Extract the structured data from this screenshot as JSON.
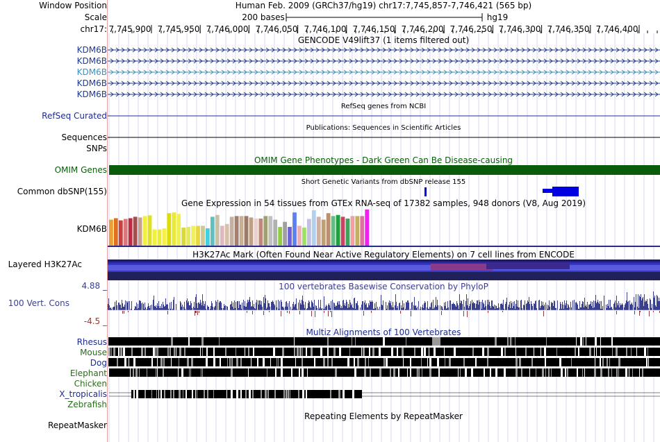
{
  "header": {
    "window_label": "Window Position",
    "window_text": "Human Feb. 2009 (GRCh37/hg19)   chr17:7,745,857-7,746,421 (565 bp)",
    "scale_label": "Scale",
    "scale_text": "200 bases",
    "scale_assembly": "hg19",
    "chrom_label": "chr17:",
    "ruler_ticks": [
      "7,745,900",
      "7,745,950",
      "7,746,000",
      "7,746,050",
      "7,746,100",
      "7,746,150",
      "7,746,200",
      "7,746,250",
      "7,746,300",
      "7,746,350",
      "7,746,400"
    ]
  },
  "tracks": {
    "gencode": {
      "title": "GENCODE V49lift37 (1 items filtered out)",
      "rows": [
        {
          "label": "KDM6B",
          "color": "#1d3b8f"
        },
        {
          "label": "KDM6B",
          "color": "#1d3b8f"
        },
        {
          "label": "KDM6B",
          "color": "#3f8fbf"
        },
        {
          "label": "KDM6B",
          "color": "#1d3b8f"
        },
        {
          "label": "KDM6B",
          "color": "#1d3b8f"
        }
      ]
    },
    "refseq": {
      "title": "RefSeq genes from NCBI",
      "label": "RefSeq Curated"
    },
    "publications": {
      "title": "Publications: Sequences in Scientific Articles",
      "label": "Sequences"
    },
    "snps": {
      "label": "SNPs"
    },
    "omim": {
      "title": "OMIM Gene Phenotypes - Dark Green Can Be Disease-causing",
      "label": "OMIM Genes",
      "color": "#0a5c0a"
    },
    "dbsnp": {
      "title": "Short Genetic Variants from dbSNP release 155",
      "label": "Common dbSNP(155)",
      "color": "#0000e0"
    },
    "gtex": {
      "title": "Gene Expression in 54 tissues from GTEx RNA-seq of 17382 samples, 948 donors (V8, Aug 2019)",
      "label": "KDM6B",
      "bar_values": [
        0.72,
        0.76,
        0.7,
        0.74,
        0.76,
        0.8,
        0.78,
        0.82,
        0.84,
        0.45,
        0.45,
        0.48,
        0.9,
        0.92,
        0.88,
        0.5,
        0.52,
        0.55,
        0.55,
        0.55,
        0.48,
        0.8,
        0.85,
        0.55,
        0.6,
        0.8,
        0.82,
        0.82,
        0.82,
        0.78,
        0.75,
        0.75,
        0.82,
        0.82,
        0.72,
        0.52,
        0.66,
        0.52,
        0.92,
        0.55,
        0.5,
        0.74,
        0.98,
        0.8,
        0.72,
        0.9,
        0.82,
        0.85,
        0.8,
        0.75,
        0.82,
        0.82,
        0.82,
        1.0
      ],
      "bar_colors": [
        "#f0a030",
        "#e07020",
        "#c84040",
        "#d87878",
        "#c02a40",
        "#a05050",
        "#c8a090",
        "#f0f040",
        "#e0e020",
        "#f0f040",
        "#ecec30",
        "#f8f048",
        "#dddd00",
        "#e8e840",
        "#f0f050",
        "#d8d840",
        "#e8e860",
        "#f0f060",
        "#e8d840",
        "#d0c890",
        "#40d0e0",
        "#60c0c0",
        "#c8c0a8",
        "#e0b8c0",
        "#d8c0a8",
        "#c8b0a0",
        "#a08070",
        "#c8b090",
        "#9a7a68",
        "#c0a080",
        "#e8d0d0",
        "#c08878",
        "#a0a070",
        "#c0c0c0",
        "#b0b0b0",
        "#90d040",
        "#a0a0a0",
        "#7060e0",
        "#6080f0",
        "#f0b0b0",
        "#a0e060",
        "#c0c0e0",
        "#b0d0f0",
        "#d0b0a0",
        "#c0a070",
        "#b89070",
        "#60c080",
        "#20a040",
        "#d04060",
        "#40a060",
        "#f0a0a0",
        "#c0b060",
        "#e070a0",
        "#f020f0"
      ]
    },
    "h3k27ac": {
      "title": "H3K27Ac Mark (Often Found Near Active Regulatory Elements) on 7 cell lines from ENCODE",
      "label": "Layered H3K27Ac"
    },
    "phylop": {
      "title": "100 vertebrates Basewise Conservation by PhyloP",
      "label": "100 Vert. Cons",
      "max_label": "4.88 _",
      "min_label": "-4.5 _",
      "pos_color": "#3b3f8f",
      "neg_color": "#8f3b3b"
    },
    "multiz": {
      "title": "Multiz Alignments of 100 Vertebrates",
      "species": [
        {
          "label": "Rhesus",
          "color": "#1d2b8f"
        },
        {
          "label": "Mouse",
          "color": "#2b6b1d"
        },
        {
          "label": "Dog",
          "color": "#1d2b8f"
        },
        {
          "label": "Elephant",
          "color": "#2b6b1d"
        },
        {
          "label": "Chicken",
          "color": "#2b6b1d"
        },
        {
          "label": "X_tropicalis",
          "color": "#1d2b8f"
        },
        {
          "label": "Zebrafish",
          "color": "#2b6b1d"
        }
      ]
    },
    "repeatmasker": {
      "title": "Repeating Elements by RepeatMasker",
      "label": "RepeatMasker"
    }
  }
}
